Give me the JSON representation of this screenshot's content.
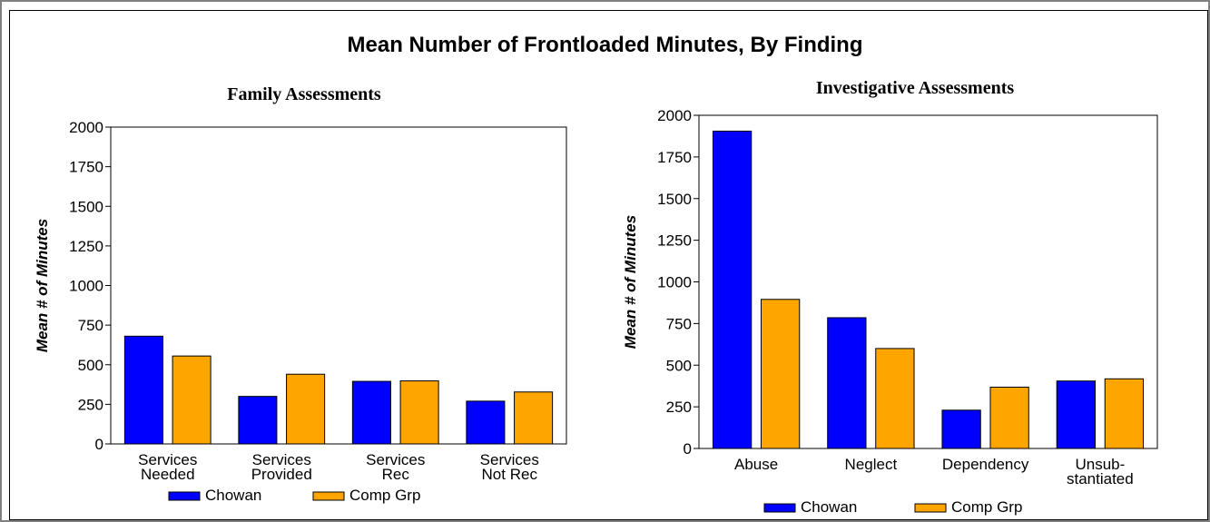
{
  "page": {
    "title": "Mean Number of Frontloaded Minutes, By Finding"
  },
  "legend": {
    "series1": "Chowan",
    "series2": "Comp Grp"
  },
  "colors": {
    "chowan": "#0000ff",
    "comp": "#ffa500"
  },
  "chart_data": [
    {
      "type": "bar",
      "title": "Family Assessments",
      "ylabel": "Mean # of Minutes",
      "xlabel": "",
      "ylim": [
        0,
        2000
      ],
      "yticks": [
        0,
        250,
        500,
        750,
        1000,
        1250,
        1500,
        1750,
        2000
      ],
      "categories": [
        [
          "Services",
          "Needed"
        ],
        [
          "Services",
          "Provided"
        ],
        [
          "Services",
          "Rec"
        ],
        [
          "Services",
          "Not Rec"
        ]
      ],
      "series": [
        {
          "name": "Chowan",
          "values": [
            680,
            300,
            395,
            270
          ]
        },
        {
          "name": "Comp Grp",
          "values": [
            555,
            440,
            398,
            328
          ]
        }
      ],
      "legend_position": "bottom"
    },
    {
      "type": "bar",
      "title": "Investigative Assessments",
      "ylabel": "Mean # of Minutes",
      "xlabel": "",
      "ylim": [
        0,
        2000
      ],
      "yticks": [
        0,
        250,
        500,
        750,
        1000,
        1250,
        1500,
        1750,
        2000
      ],
      "categories": [
        [
          "Abuse"
        ],
        [
          "Neglect"
        ],
        [
          "Dependency"
        ],
        [
          "Unsub-",
          "stantiated"
        ]
      ],
      "series": [
        {
          "name": "Chowan",
          "values": [
            1905,
            785,
            230,
            405
          ]
        },
        {
          "name": "Comp Grp",
          "values": [
            895,
            600,
            368,
            418
          ]
        }
      ],
      "legend_position": "bottom"
    }
  ]
}
